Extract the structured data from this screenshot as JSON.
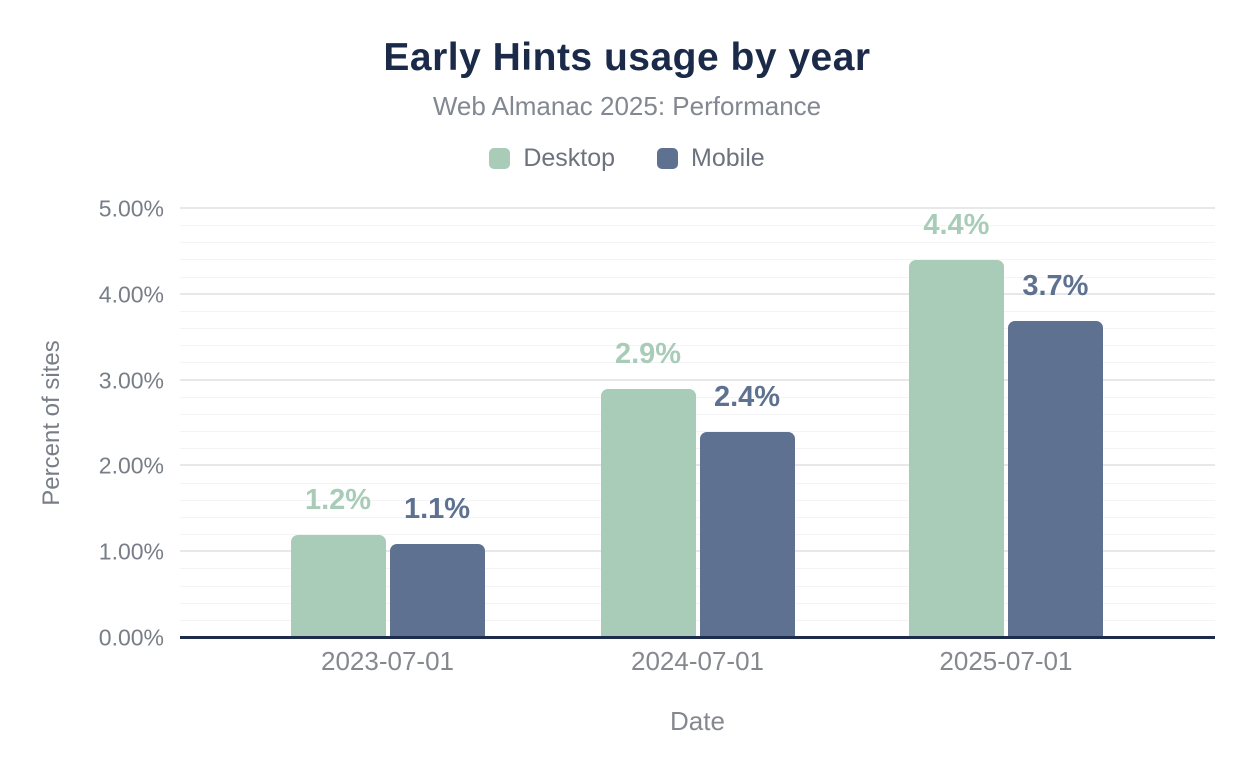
{
  "header": {
    "title": "Early Hints usage by year",
    "subtitle": "Web Almanac 2025: Performance"
  },
  "chart_data": {
    "type": "bar",
    "title": "Early Hints usage by year",
    "subtitle": "Web Almanac 2025: Performance",
    "categories": [
      "2023-07-01",
      "2024-07-01",
      "2025-07-01"
    ],
    "series": [
      {
        "name": "Desktop",
        "color": "#a8ccb8",
        "values": [
          1.2,
          2.9,
          4.4
        ],
        "data_labels": [
          "1.2%",
          "2.9%",
          "4.4%"
        ]
      },
      {
        "name": "Mobile",
        "color": "#5e7190",
        "values": [
          1.1,
          2.4,
          3.7
        ],
        "data_labels": [
          "1.1%",
          "2.4%",
          "3.7%"
        ]
      }
    ],
    "xlabel": "Date",
    "ylabel": "Percent of sites",
    "ylim": [
      0,
      5
    ],
    "yticks": [
      {
        "value": 0,
        "label": "0.00%"
      },
      {
        "value": 1,
        "label": "1.00%"
      },
      {
        "value": 2,
        "label": "2.00%"
      },
      {
        "value": 3,
        "label": "3.00%"
      },
      {
        "value": 4,
        "label": "4.00%"
      },
      {
        "value": 5,
        "label": "5.00%"
      }
    ],
    "grid": {
      "minor_step": 0.2,
      "major_step": 1,
      "minor_on": true,
      "major_on": true
    },
    "legend_position": "top",
    "group_centers_pct": [
      20.05,
      50,
      79.8
    ],
    "colors": {
      "title": "#1b2a49",
      "axis_line": "#1d2c4d",
      "tick_text": "#787e87",
      "subtitle_text": "#828891",
      "legend_text": "#6d737d",
      "grid_minor": "#f4f4f6",
      "grid_major": "#e7e8ea",
      "background": "#ffffff"
    }
  }
}
